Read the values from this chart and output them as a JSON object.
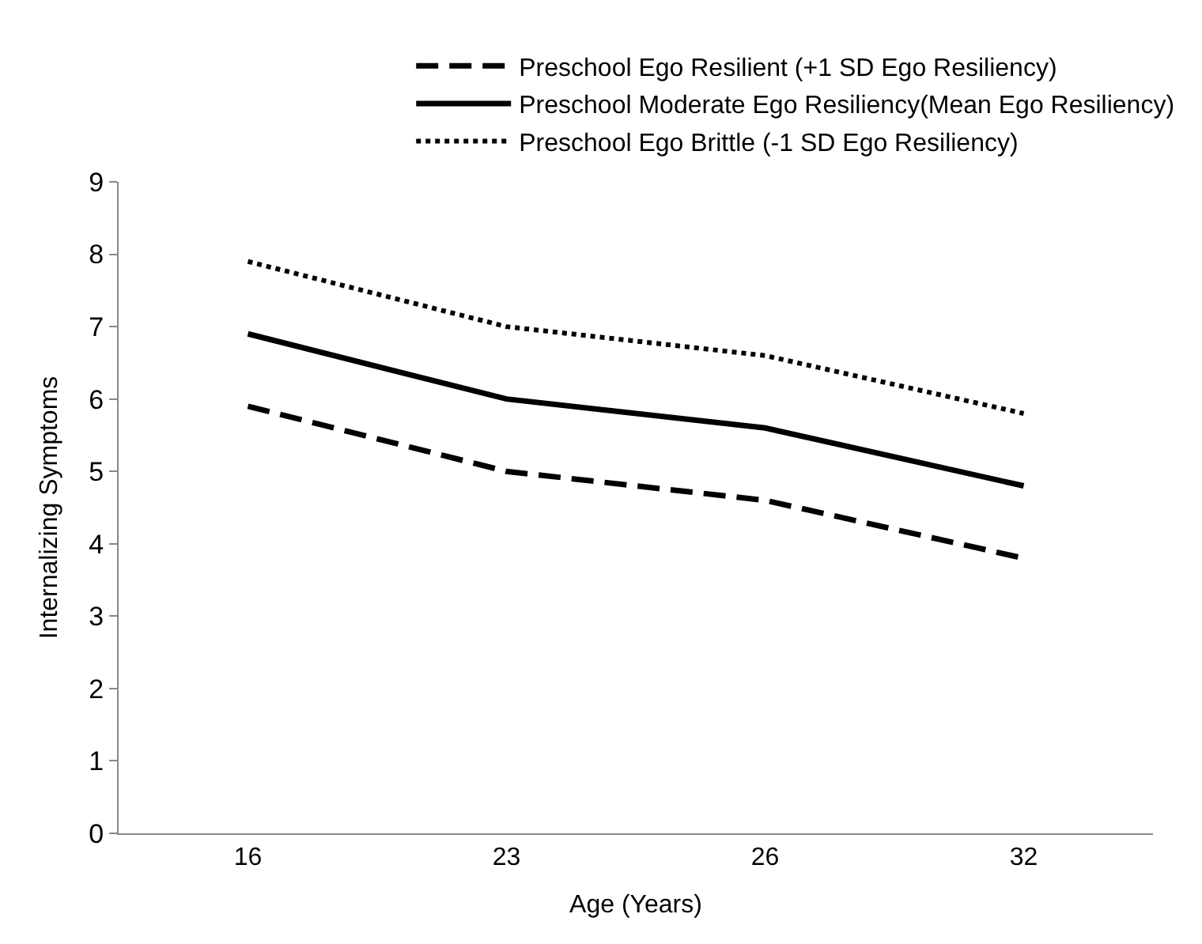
{
  "chart_data": {
    "type": "line",
    "xlabel": "Age (Years)",
    "ylabel": "Internalizing Symptoms",
    "categories": [
      "16",
      "23",
      "26",
      "32"
    ],
    "series": [
      {
        "name": "Preschool Ego Resilient (+1 SD Ego Resiliency)",
        "color": "#000000",
        "line_style": "dashed",
        "values": [
          5.9,
          5.0,
          4.6,
          3.8
        ]
      },
      {
        "name": "Preschool Moderate Ego Resiliency(Mean Ego Resiliency)",
        "color": "#000000",
        "line_style": "solid",
        "values": [
          6.9,
          6.0,
          5.6,
          4.8
        ]
      },
      {
        "name": "Preschool Ego Brittle (-1 SD Ego Resiliency)",
        "color": "#000000",
        "line_style": "dotted",
        "values": [
          7.9,
          7.0,
          6.6,
          5.8
        ]
      }
    ],
    "ylim": [
      0,
      9
    ],
    "yticks": [
      0,
      1,
      2,
      3,
      4,
      5,
      6,
      7,
      8,
      9
    ],
    "legend": "top",
    "marker": "none"
  }
}
